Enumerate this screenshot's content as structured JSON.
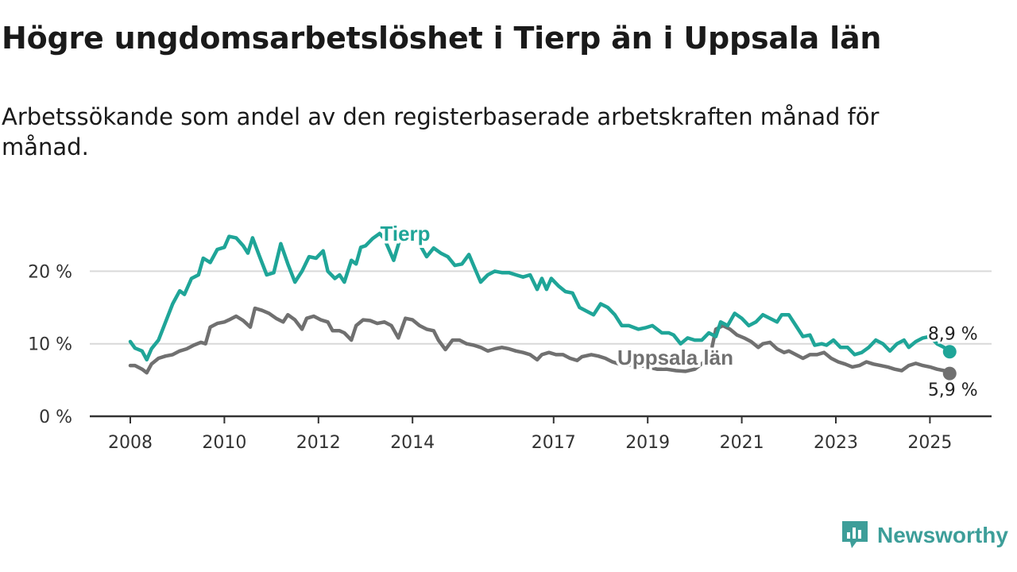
{
  "title": "Högre ungdomsarbetslöshet i Tierp än i Uppsala län",
  "subtitle": "Arbetssökande som andel av den registerbaserade arbetskraften månad för månad.",
  "brand": {
    "name": "Newsworthy",
    "color": "#3d9e99"
  },
  "colors": {
    "tierp": "#1fa598",
    "uppsala": "#707070",
    "axis": "#333333",
    "grid": "#d9d9d9",
    "text": "#333333"
  },
  "chart_data": {
    "type": "line",
    "title": "Högre ungdomsarbetslöshet i Tierp än i Uppsala län",
    "subtitle": "Arbetssökande som andel av den registerbaserade arbetskraften månad för månad.",
    "y_unit": "%",
    "ylim": [
      0,
      27
    ],
    "xlim": [
      2007.75,
      2026.2
    ],
    "x_ticks": [
      2008,
      2010,
      2012,
      2014,
      2017,
      2019,
      2021,
      2023,
      2025
    ],
    "x_tick_labels": [
      "2008",
      "2010",
      "2012",
      "2014",
      "2017",
      "2019",
      "2021",
      "2023",
      "2025"
    ],
    "y_ticks": [
      0,
      10,
      20
    ],
    "y_tick_labels": [
      "0 %",
      "10 %",
      "20 %"
    ],
    "grid": "horizontal",
    "legend": "inline labels on the lines",
    "series": [
      {
        "name": "Tierp",
        "end_label": "8,9 %",
        "points": [
          [
            2008.0,
            10.3
          ],
          [
            2008.1,
            9.4
          ],
          [
            2008.25,
            9.0
          ],
          [
            2008.35,
            7.8
          ],
          [
            2008.45,
            9.3
          ],
          [
            2008.6,
            10.5
          ],
          [
            2008.75,
            13.0
          ],
          [
            2008.9,
            15.5
          ],
          [
            2009.05,
            17.3
          ],
          [
            2009.15,
            16.8
          ],
          [
            2009.3,
            19.0
          ],
          [
            2009.45,
            19.5
          ],
          [
            2009.55,
            21.8
          ],
          [
            2009.7,
            21.2
          ],
          [
            2009.85,
            23.0
          ],
          [
            2010.0,
            23.3
          ],
          [
            2010.1,
            24.8
          ],
          [
            2010.25,
            24.6
          ],
          [
            2010.4,
            23.5
          ],
          [
            2010.5,
            22.5
          ],
          [
            2010.6,
            24.6
          ],
          [
            2010.75,
            22.0
          ],
          [
            2010.9,
            19.5
          ],
          [
            2011.05,
            19.8
          ],
          [
            2011.2,
            23.8
          ],
          [
            2011.35,
            21.0
          ],
          [
            2011.5,
            18.5
          ],
          [
            2011.65,
            20.0
          ],
          [
            2011.8,
            22.0
          ],
          [
            2011.95,
            21.8
          ],
          [
            2012.1,
            22.8
          ],
          [
            2012.2,
            20.0
          ],
          [
            2012.35,
            19.0
          ],
          [
            2012.45,
            19.5
          ],
          [
            2012.55,
            18.5
          ],
          [
            2012.7,
            21.5
          ],
          [
            2012.8,
            21.0
          ],
          [
            2012.9,
            23.3
          ],
          [
            2013.0,
            23.5
          ],
          [
            2013.15,
            24.5
          ],
          [
            2013.3,
            25.2
          ],
          [
            2013.4,
            24.5
          ],
          [
            2013.6,
            21.5
          ],
          [
            2013.75,
            24.8
          ],
          [
            2013.9,
            25.0
          ],
          [
            2014.1,
            24.3
          ],
          [
            2014.3,
            22.0
          ],
          [
            2014.45,
            23.2
          ],
          [
            2014.6,
            22.5
          ],
          [
            2014.75,
            22.0
          ],
          [
            2014.9,
            20.8
          ],
          [
            2015.05,
            21.0
          ],
          [
            2015.2,
            22.3
          ],
          [
            2015.35,
            20.0
          ],
          [
            2015.45,
            18.5
          ],
          [
            2015.6,
            19.5
          ],
          [
            2015.75,
            20.0
          ],
          [
            2015.9,
            19.8
          ],
          [
            2016.05,
            19.8
          ],
          [
            2016.2,
            19.5
          ],
          [
            2016.35,
            19.2
          ],
          [
            2016.5,
            19.5
          ],
          [
            2016.65,
            17.5
          ],
          [
            2016.75,
            19.0
          ],
          [
            2016.85,
            17.5
          ],
          [
            2016.95,
            19.0
          ],
          [
            2017.1,
            18.0
          ],
          [
            2017.25,
            17.2
          ],
          [
            2017.4,
            17.0
          ],
          [
            2017.55,
            15.0
          ],
          [
            2017.7,
            14.5
          ],
          [
            2017.85,
            14.0
          ],
          [
            2018.0,
            15.5
          ],
          [
            2018.15,
            15.0
          ],
          [
            2018.3,
            14.0
          ],
          [
            2018.45,
            12.5
          ],
          [
            2018.6,
            12.5
          ],
          [
            2018.8,
            12.0
          ],
          [
            2018.95,
            12.2
          ],
          [
            2019.1,
            12.5
          ],
          [
            2019.3,
            11.5
          ],
          [
            2019.45,
            11.5
          ],
          [
            2019.55,
            11.2
          ],
          [
            2019.7,
            10.0
          ],
          [
            2019.85,
            10.8
          ],
          [
            2020.0,
            10.5
          ],
          [
            2020.15,
            10.5
          ],
          [
            2020.3,
            11.5
          ],
          [
            2020.45,
            11.0
          ],
          [
            2020.55,
            13.0
          ],
          [
            2020.7,
            12.5
          ],
          [
            2020.85,
            14.2
          ],
          [
            2021.0,
            13.5
          ],
          [
            2021.15,
            12.5
          ],
          [
            2021.3,
            13.0
          ],
          [
            2021.45,
            14.0
          ],
          [
            2021.6,
            13.5
          ],
          [
            2021.75,
            13.0
          ],
          [
            2021.85,
            14.0
          ],
          [
            2022.0,
            14.0
          ],
          [
            2022.15,
            12.5
          ],
          [
            2022.3,
            11.0
          ],
          [
            2022.45,
            11.2
          ],
          [
            2022.55,
            9.8
          ],
          [
            2022.7,
            10.0
          ],
          [
            2022.8,
            9.8
          ],
          [
            2022.95,
            10.5
          ],
          [
            2023.1,
            9.5
          ],
          [
            2023.25,
            9.5
          ],
          [
            2023.4,
            8.5
          ],
          [
            2023.55,
            8.8
          ],
          [
            2023.7,
            9.5
          ],
          [
            2023.85,
            10.5
          ],
          [
            2024.0,
            10.0
          ],
          [
            2024.15,
            9.0
          ],
          [
            2024.3,
            10.0
          ],
          [
            2024.45,
            10.5
          ],
          [
            2024.55,
            9.5
          ],
          [
            2024.7,
            10.3
          ],
          [
            2024.85,
            10.8
          ],
          [
            2025.0,
            11.0
          ],
          [
            2025.15,
            10.0
          ],
          [
            2025.3,
            9.5
          ],
          [
            2025.42,
            8.9
          ]
        ]
      },
      {
        "name": "Uppsala län",
        "end_label": "5,9 %",
        "points": [
          [
            2008.0,
            7.0
          ],
          [
            2008.1,
            7.0
          ],
          [
            2008.25,
            6.5
          ],
          [
            2008.35,
            6.0
          ],
          [
            2008.45,
            7.2
          ],
          [
            2008.6,
            8.0
          ],
          [
            2008.75,
            8.3
          ],
          [
            2008.9,
            8.5
          ],
          [
            2009.05,
            9.0
          ],
          [
            2009.2,
            9.3
          ],
          [
            2009.35,
            9.8
          ],
          [
            2009.5,
            10.2
          ],
          [
            2009.6,
            10.0
          ],
          [
            2009.7,
            12.3
          ],
          [
            2009.85,
            12.8
          ],
          [
            2010.0,
            13.0
          ],
          [
            2010.1,
            13.3
          ],
          [
            2010.25,
            13.8
          ],
          [
            2010.4,
            13.2
          ],
          [
            2010.55,
            12.3
          ],
          [
            2010.65,
            14.9
          ],
          [
            2010.8,
            14.6
          ],
          [
            2010.95,
            14.2
          ],
          [
            2011.1,
            13.5
          ],
          [
            2011.25,
            13.0
          ],
          [
            2011.35,
            14.0
          ],
          [
            2011.5,
            13.3
          ],
          [
            2011.65,
            12.0
          ],
          [
            2011.75,
            13.5
          ],
          [
            2011.9,
            13.8
          ],
          [
            2012.05,
            13.3
          ],
          [
            2012.2,
            13.0
          ],
          [
            2012.3,
            11.8
          ],
          [
            2012.45,
            11.8
          ],
          [
            2012.55,
            11.5
          ],
          [
            2012.7,
            10.5
          ],
          [
            2012.8,
            12.5
          ],
          [
            2012.95,
            13.3
          ],
          [
            2013.1,
            13.2
          ],
          [
            2013.25,
            12.8
          ],
          [
            2013.4,
            13.0
          ],
          [
            2013.55,
            12.5
          ],
          [
            2013.7,
            10.8
          ],
          [
            2013.85,
            13.5
          ],
          [
            2014.0,
            13.3
          ],
          [
            2014.15,
            12.5
          ],
          [
            2014.3,
            12.0
          ],
          [
            2014.45,
            11.8
          ],
          [
            2014.55,
            10.5
          ],
          [
            2014.7,
            9.2
          ],
          [
            2014.85,
            10.5
          ],
          [
            2015.0,
            10.5
          ],
          [
            2015.15,
            10.0
          ],
          [
            2015.3,
            9.8
          ],
          [
            2015.45,
            9.5
          ],
          [
            2015.6,
            9.0
          ],
          [
            2015.75,
            9.3
          ],
          [
            2015.9,
            9.5
          ],
          [
            2016.05,
            9.3
          ],
          [
            2016.2,
            9.0
          ],
          [
            2016.35,
            8.8
          ],
          [
            2016.5,
            8.5
          ],
          [
            2016.65,
            7.8
          ],
          [
            2016.75,
            8.5
          ],
          [
            2016.9,
            8.8
          ],
          [
            2017.05,
            8.5
          ],
          [
            2017.2,
            8.5
          ],
          [
            2017.35,
            8.0
          ],
          [
            2017.5,
            7.7
          ],
          [
            2017.6,
            8.2
          ],
          [
            2017.8,
            8.5
          ],
          [
            2017.95,
            8.3
          ],
          [
            2018.1,
            8.0
          ],
          [
            2018.25,
            7.5
          ],
          [
            2018.4,
            7.2
          ],
          [
            2018.55,
            7.0
          ],
          [
            2018.7,
            7.2
          ],
          [
            2018.85,
            7.0
          ],
          [
            2019.0,
            6.8
          ],
          [
            2019.2,
            6.5
          ],
          [
            2019.4,
            6.5
          ],
          [
            2019.6,
            6.3
          ],
          [
            2019.8,
            6.2
          ],
          [
            2020.0,
            6.5
          ],
          [
            2020.2,
            7.5
          ],
          [
            2020.35,
            9.0
          ],
          [
            2020.45,
            12.0
          ],
          [
            2020.6,
            12.5
          ],
          [
            2020.75,
            12.0
          ],
          [
            2020.9,
            11.2
          ],
          [
            2021.05,
            10.8
          ],
          [
            2021.2,
            10.3
          ],
          [
            2021.35,
            9.5
          ],
          [
            2021.45,
            10.0
          ],
          [
            2021.6,
            10.2
          ],
          [
            2021.75,
            9.3
          ],
          [
            2021.9,
            8.8
          ],
          [
            2022.0,
            9.0
          ],
          [
            2022.15,
            8.5
          ],
          [
            2022.3,
            8.0
          ],
          [
            2022.45,
            8.5
          ],
          [
            2022.6,
            8.5
          ],
          [
            2022.75,
            8.8
          ],
          [
            2022.9,
            8.0
          ],
          [
            2023.05,
            7.5
          ],
          [
            2023.2,
            7.2
          ],
          [
            2023.35,
            6.8
          ],
          [
            2023.5,
            7.0
          ],
          [
            2023.65,
            7.5
          ],
          [
            2023.8,
            7.2
          ],
          [
            2023.95,
            7.0
          ],
          [
            2024.1,
            6.8
          ],
          [
            2024.25,
            6.5
          ],
          [
            2024.4,
            6.3
          ],
          [
            2024.55,
            7.0
          ],
          [
            2024.7,
            7.3
          ],
          [
            2024.85,
            7.0
          ],
          [
            2025.0,
            6.8
          ],
          [
            2025.15,
            6.5
          ],
          [
            2025.3,
            6.3
          ],
          [
            2025.42,
            5.9
          ]
        ]
      }
    ]
  }
}
